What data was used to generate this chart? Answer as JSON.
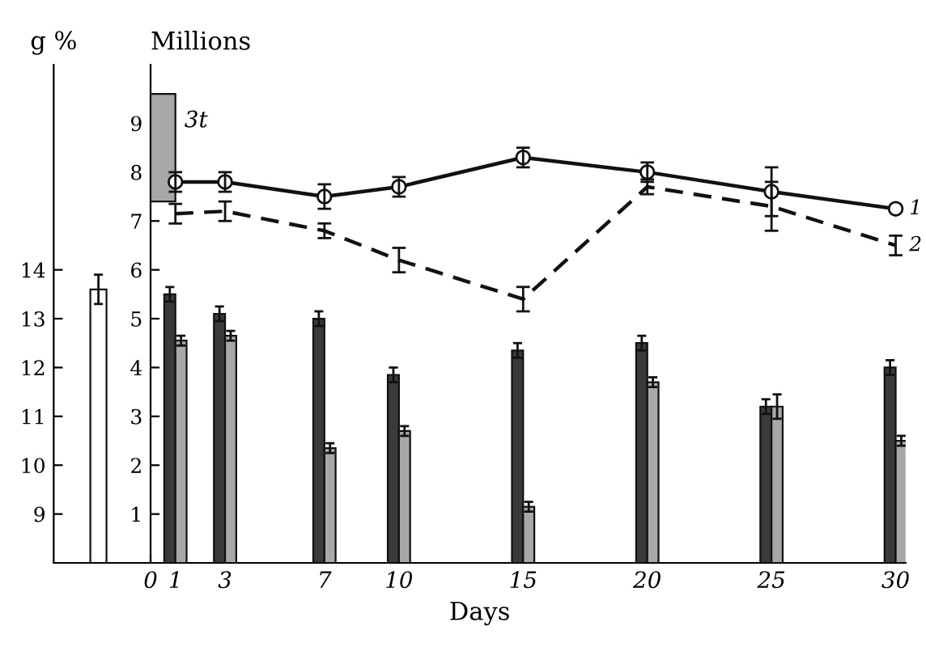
{
  "chart_data": {
    "type": "bar",
    "xlabel": "Days",
    "ylabel": "Millions",
    "y2label": "g %",
    "xlim": [
      -3.9,
      30.4
    ],
    "xticks": [
      0,
      1,
      3,
      7,
      10,
      15,
      20,
      25,
      30
    ],
    "ylim": [
      0,
      10.2
    ],
    "yticks": [
      1,
      2,
      3,
      4,
      5,
      6,
      7,
      8,
      9
    ],
    "y2lim": [
      8,
      18.2
    ],
    "y2ticks": [
      9,
      10,
      11,
      12,
      13,
      14
    ],
    "grid": false,
    "legend": false,
    "series": [
      {
        "name": "1",
        "type": "line",
        "color": "#111111",
        "marker": "circle",
        "line_style": "solid",
        "x": [
          1,
          3,
          7,
          10,
          15,
          20,
          25,
          30
        ],
        "values": [
          7.8,
          7.8,
          7.5,
          7.7,
          8.3,
          8.0,
          7.6,
          7.25
        ],
        "errors": [
          0.2,
          0.2,
          0.25,
          0.2,
          0.2,
          0.2,
          0.5,
          null
        ]
      },
      {
        "name": "2",
        "type": "line",
        "color": "#111111",
        "marker": "none",
        "line_style": "dashed",
        "x": [
          1,
          3,
          7,
          10,
          15,
          20,
          25,
          30
        ],
        "values": [
          7.15,
          7.2,
          6.8,
          6.2,
          5.4,
          7.7,
          7.3,
          6.5
        ],
        "errors": [
          0.2,
          0.2,
          0.15,
          0.25,
          0.25,
          0.15,
          0.5,
          0.2
        ]
      },
      {
        "axis": "y2",
        "color": "#ffffff",
        "x": [
          -2.1
        ],
        "values": [
          13.6
        ],
        "errors": [
          0.3
        ]
      },
      {
        "name": "3t",
        "color": "#a8a8a8",
        "x": [
          0.5
        ],
        "base": [
          7.4
        ],
        "values": [
          2.2
        ]
      },
      {
        "color": "#3a3a3a",
        "x": [
          1,
          3,
          7,
          10,
          15,
          20,
          25,
          30
        ],
        "values": [
          5.5,
          5.1,
          5.0,
          3.85,
          4.35,
          4.5,
          3.2,
          4.0
        ],
        "errors": [
          0.15,
          0.15,
          0.15,
          0.15,
          0.15,
          0.15,
          0.15,
          0.15
        ]
      },
      {
        "color": "#a8a8a8",
        "x": [
          1,
          3,
          7,
          10,
          15,
          20,
          25,
          30
        ],
        "values": [
          4.55,
          4.65,
          2.35,
          2.7,
          1.15,
          3.7,
          3.2,
          2.5
        ],
        "errors": [
          0.1,
          0.1,
          0.1,
          0.1,
          0.1,
          0.1,
          0.25,
          0.1
        ]
      }
    ]
  }
}
